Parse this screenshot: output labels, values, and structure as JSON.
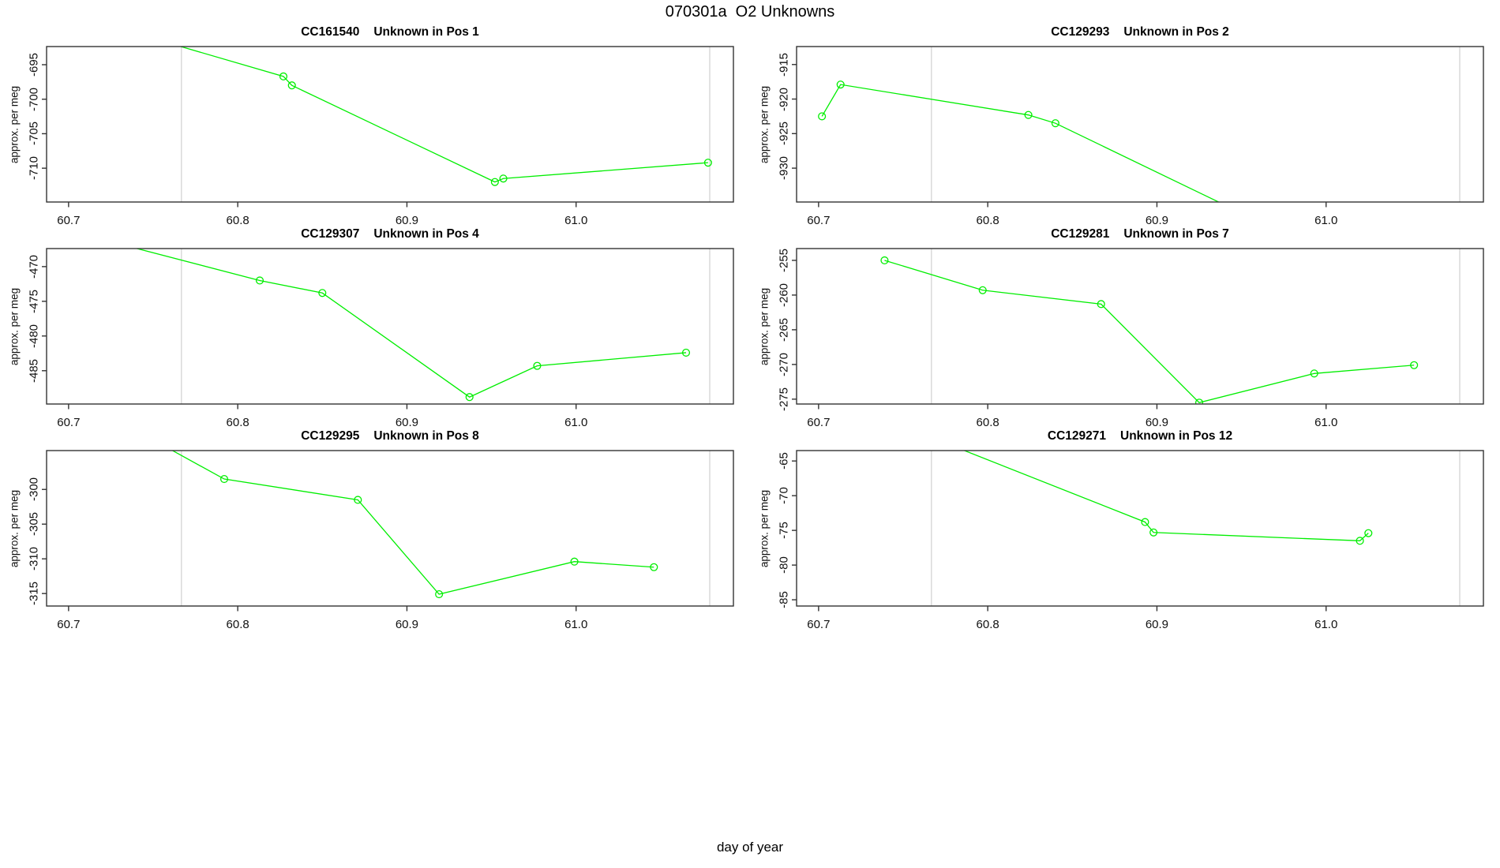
{
  "page": {
    "main_title": "070301a  O2 Unknowns",
    "x_axis_global_label": "day of year"
  },
  "colors": {
    "series_line": "#00ee00",
    "marker_stroke": "#00ee00",
    "gridline": "#d9d9d9",
    "axis": "#333333",
    "text": "#000000",
    "background": "#ffffff"
  },
  "chart_data": [
    {
      "type": "line",
      "title_id": "CC161540",
      "title_desc": "Unknown in Pos 1",
      "ylabel": "approx. per meg",
      "xlim": [
        60.687,
        61.093
      ],
      "ylim": [
        -714.9,
        -692.37
      ],
      "xticks": [
        60.7,
        60.8,
        60.9,
        61.0
      ],
      "yticks": [
        -710,
        -705,
        -700,
        -695
      ],
      "gridlines_x": [
        60.7667,
        61.079
      ],
      "grid": "vertical-reference-lines-only",
      "marker": "open-circle",
      "x": [
        60.75,
        60.827,
        60.832,
        60.952,
        60.957,
        61.078
      ],
      "y": [
        -691.2,
        -696.7,
        -698.0,
        -712.0,
        -711.5,
        -709.2
      ]
    },
    {
      "type": "line",
      "title_id": "CC129293",
      "title_desc": "Unknown in Pos 2",
      "ylabel": "approx. per meg",
      "xlim": [
        60.687,
        61.093
      ],
      "ylim": [
        -934.9,
        -912.4
      ],
      "xticks": [
        60.7,
        60.8,
        60.9,
        61.0
      ],
      "yticks": [
        -930,
        -925,
        -920,
        -915
      ],
      "gridlines_x": [
        60.7667,
        61.079
      ],
      "grid": "vertical-reference-lines-only",
      "marker": "open-circle",
      "x": [
        60.702,
        60.713,
        60.824,
        60.84,
        60.95
      ],
      "y": [
        -922.5,
        -917.9,
        -922.3,
        -923.5,
        -936.5
      ]
    },
    {
      "type": "line",
      "title_id": "CC129307",
      "title_desc": "Unknown in Pos 4",
      "ylabel": "approx. per meg",
      "xlim": [
        60.687,
        61.093
      ],
      "ylim": [
        -489.8,
        -467.4
      ],
      "xticks": [
        60.7,
        60.8,
        60.9,
        61.0
      ],
      "yticks": [
        -485,
        -480,
        -475,
        -470
      ],
      "gridlines_x": [
        60.7667,
        61.079
      ],
      "grid": "vertical-reference-lines-only",
      "marker": "open-circle",
      "x": [
        60.72,
        60.813,
        60.85,
        60.937,
        60.977,
        61.065
      ],
      "y": [
        -466.1,
        -472.0,
        -473.8,
        -488.8,
        -484.3,
        -482.4
      ]
    },
    {
      "type": "line",
      "title_id": "CC129281",
      "title_desc": "Unknown in Pos 7",
      "ylabel": "approx. per meg",
      "xlim": [
        60.687,
        61.093
      ],
      "ylim": [
        -275.7,
        -253.3
      ],
      "xticks": [
        60.7,
        60.8,
        60.9,
        61.0
      ],
      "yticks": [
        -275,
        -270,
        -265,
        -260,
        -255
      ],
      "gridlines_x": [
        60.7667,
        61.079
      ],
      "grid": "vertical-reference-lines-only",
      "marker": "open-circle",
      "x": [
        60.739,
        60.797,
        60.867,
        60.925,
        60.993,
        61.052
      ],
      "y": [
        -255.0,
        -259.3,
        -261.3,
        -275.5,
        -271.3,
        -270.1
      ]
    },
    {
      "type": "line",
      "title_id": "CC129295",
      "title_desc": "Unknown in Pos 8",
      "ylabel": "approx. per meg",
      "xlim": [
        60.687,
        61.093
      ],
      "ylim": [
        -316.8,
        -294.4
      ],
      "xticks": [
        60.7,
        60.8,
        60.9,
        61.0
      ],
      "yticks": [
        -315,
        -310,
        -305,
        -300
      ],
      "gridlines_x": [
        60.7667,
        61.079
      ],
      "grid": "vertical-reference-lines-only",
      "marker": "open-circle",
      "x": [
        60.757,
        60.792,
        60.871,
        60.919,
        60.999,
        61.046
      ],
      "y": [
        -293.8,
        -298.5,
        -301.5,
        -315.1,
        -310.4,
        -311.2
      ]
    },
    {
      "type": "line",
      "title_id": "CC129271",
      "title_desc": "Unknown in Pos 12",
      "ylabel": "approx. per meg",
      "xlim": [
        60.687,
        61.093
      ],
      "ylim": [
        -85.9,
        -63.5
      ],
      "xticks": [
        60.7,
        60.8,
        60.9,
        61.0
      ],
      "yticks": [
        -85,
        -80,
        -75,
        -70,
        -65
      ],
      "gridlines_x": [
        60.7667,
        61.079
      ],
      "grid": "vertical-reference-lines-only",
      "marker": "open-circle",
      "x": [
        60.78,
        60.893,
        60.898,
        61.02,
        61.025
      ],
      "y": [
        -62.9,
        -73.8,
        -75.3,
        -76.5,
        -75.4
      ]
    }
  ]
}
